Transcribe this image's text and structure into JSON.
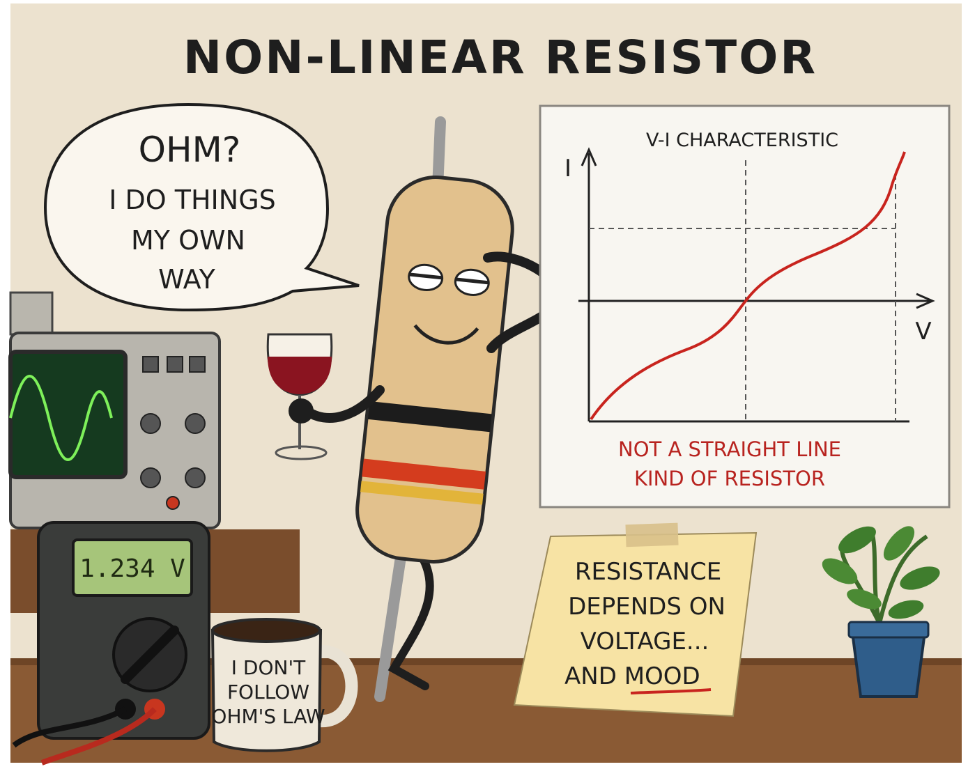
{
  "title": "NON-LINEAR RESISTOR",
  "speech_bubble": {
    "lines": [
      "OHM?",
      "I DO THINGS",
      "MY OWN",
      "WAY"
    ]
  },
  "graph": {
    "title": "V-I CHARACTERISTIC",
    "y_axis_label": "I",
    "x_axis_label": "V",
    "caption": [
      "NOT A STRAIGHT LINE",
      "KIND OF RESISTOR"
    ]
  },
  "multimeter": {
    "display": "1.234 V"
  },
  "mug": {
    "lines": [
      "I DON'T",
      "FOLLOW",
      "OHM'S LAW"
    ]
  },
  "sticky_note": {
    "lines": [
      "RESISTANCE",
      "DEPENDS ON",
      "VOLTAGE...",
      "AND",
      "MOOD"
    ]
  }
}
